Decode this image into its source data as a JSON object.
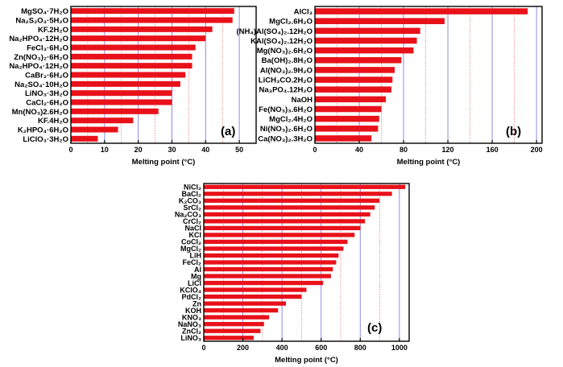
{
  "chart_data": [
    {
      "type": "bar",
      "orientation": "horizontal",
      "panel_label": "(a)",
      "xlabel": "Melting point (°C)",
      "xlim": [
        0,
        55
      ],
      "xticks": [
        0,
        10,
        20,
        30,
        40,
        50
      ],
      "bar_color": "#e8111a",
      "grid": {
        "major": "blue solid",
        "minor": "red dotted"
      },
      "categories": [
        {
          "main": "MgSO",
          "subs": [
            "4",
            "·7H",
            "2",
            "O"
          ]
        },
        {
          "main": "",
          "subs": []
        }
      ],
      "labels": [
        "MgSO₄·7H₂O",
        "Na₂S₂O₃·5H₂O",
        "KF.2H₂O",
        "Na₂HPO₄·12H₂O",
        "FeCl₃·6H₂O",
        "Zn(NO₃)₂·6H₂O",
        "Na₂HPO₄·12H₂O",
        "CaBr₂·6H₂O",
        "Na₂SO₄·10H₂O",
        "LiNO₃·3H₂O",
        "CaCl₂·6H₂O",
        "Mn(NO₃)2.6H₂O",
        "KF.4H₂O",
        "K₂HPO₄·6H₂O",
        "LiClO₃·3H₂O"
      ],
      "values": [
        48.5,
        48,
        42,
        40,
        37,
        36,
        36,
        34,
        32.5,
        30,
        30,
        26,
        18.5,
        14,
        8
      ]
    },
    {
      "type": "bar",
      "orientation": "horizontal",
      "panel_label": "(b)",
      "xlabel": "Melting point (°C)",
      "xlim": [
        0,
        205
      ],
      "xticks": [
        0,
        40,
        80,
        120,
        160,
        200
      ],
      "bar_color": "#e8111a",
      "labels": [
        "AlCl₃",
        "MgCl₂.6H₂O",
        "(NH₄)Al(SO₄)₂.12H₂O",
        "KAl(SO₄)₂.12H₂O",
        "Mg(NO₃)₂.6H₂O",
        "Ba(OH)₂.8H₂O",
        "Al(NO₃)₂.9H₂O",
        "LiCH₃CO.2H₂O",
        "Na₃PO₄.12H₂O",
        "NaOH",
        "Fe(NO₃)₃.6H₂O",
        "MgCl₂.4H₂O",
        "Ni(NO₃)₂.6H₂O",
        "Ca(NO₃)₂.3H₂O"
      ],
      "values": [
        192,
        117,
        95,
        92,
        89,
        78,
        72,
        70,
        69,
        64,
        60,
        58,
        57,
        51
      ]
    },
    {
      "type": "bar",
      "orientation": "horizontal",
      "panel_label": "(c)",
      "xlabel": "Melting point (°C)",
      "xlim": [
        0,
        1050
      ],
      "xticks": [
        0,
        200,
        400,
        600,
        800,
        1000
      ],
      "bar_color": "#e8111a",
      "labels": [
        "NiCl₂",
        "BaCl₂",
        "K₂CO₃",
        "SrCl₂",
        "Na₂CO₃",
        "CrCl₂",
        "NaCl",
        "KCl",
        "CoCl₂",
        "MgCl₂",
        "LiH",
        "FeCl₂",
        "Al",
        "Mg",
        "LiCl",
        "KClO₄",
        "PdCl₂",
        "Zn",
        "KOH",
        "KNO₃",
        "NaNO₃",
        "ZnCl₂",
        "LiNO₃"
      ],
      "values": [
        1030,
        962,
        898,
        874,
        851,
        824,
        801,
        771,
        735,
        714,
        689,
        677,
        660,
        650,
        610,
        525,
        500,
        420,
        380,
        334,
        308,
        290,
        255
      ]
    }
  ]
}
